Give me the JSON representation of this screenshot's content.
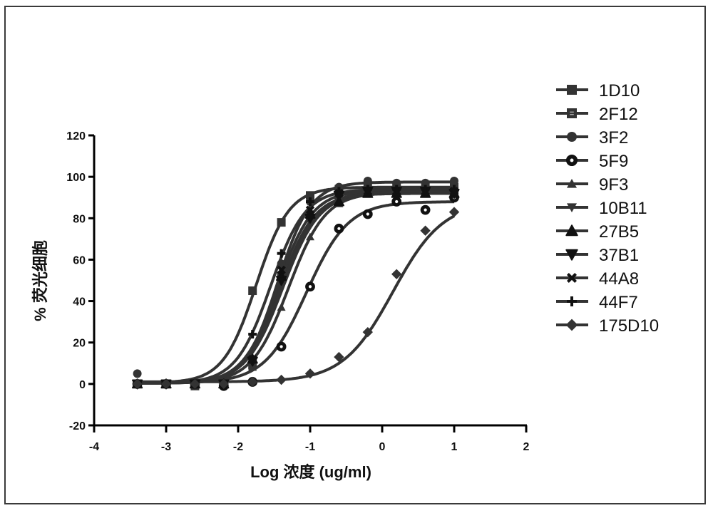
{
  "chart_data": {
    "type": "line",
    "subtype": "dose-response sigmoid fits with scatter markers",
    "title": "",
    "xlabel": "Log 浓度 (ug/ml)",
    "ylabel": "% 荧光细胞",
    "xlim": [
      -4,
      2
    ],
    "ylim": [
      -20,
      120
    ],
    "x_ticks": [
      -4,
      -3,
      -2,
      -1,
      0,
      1,
      2
    ],
    "x_tick_labels": [
      "-4",
      "-3",
      "-2",
      "-1",
      "0",
      "1",
      "2"
    ],
    "y_ticks": [
      -20,
      0,
      20,
      40,
      60,
      80,
      100,
      120
    ],
    "y_tick_labels": [
      "-20",
      "0",
      "20",
      "40",
      "60",
      "80",
      "100",
      "120"
    ],
    "grid": false,
    "legend_position": "right",
    "x": [
      -3.4,
      -3.0,
      -2.6,
      -2.2,
      -1.8,
      -1.4,
      -1.0,
      -0.6,
      -0.2,
      0.2,
      0.6,
      1.0
    ],
    "series": [
      {
        "name": "1D10",
        "marker": "square",
        "values": [
          0,
          0,
          0,
          1,
          45,
          78,
          91,
          94,
          95,
          96,
          95,
          95
        ],
        "fit": {
          "bottom": 0.5,
          "top": 95,
          "logEC50": -1.75,
          "hill": 1.9
        }
      },
      {
        "name": "2F12",
        "marker": "square-open",
        "values": [
          0,
          0,
          -1,
          0,
          9,
          52,
          80,
          90,
          92,
          92,
          92,
          91
        ],
        "fit": {
          "bottom": 0.3,
          "top": 92,
          "logEC50": -1.42,
          "hill": 1.8
        }
      },
      {
        "name": "3F2",
        "marker": "circle",
        "values": [
          5,
          0,
          0,
          0,
          10,
          58,
          88,
          95,
          98,
          97,
          97,
          98
        ],
        "fit": {
          "bottom": 0.5,
          "top": 97.5,
          "logEC50": -1.45,
          "hill": 1.9
        }
      },
      {
        "name": "5F9",
        "marker": "circle-open",
        "values": [
          0,
          0,
          0,
          -1,
          1,
          18,
          47,
          75,
          82,
          88,
          84,
          90
        ],
        "fit": {
          "bottom": 0.5,
          "top": 88,
          "logEC50": -1.05,
          "hill": 1.5
        }
      },
      {
        "name": "9F3",
        "marker": "triangle-up",
        "values": [
          0,
          0,
          0,
          0,
          8,
          37,
          71,
          87,
          92,
          92,
          92,
          92
        ],
        "fit": {
          "bottom": 0.3,
          "top": 92.5,
          "logEC50": -1.3,
          "hill": 1.7
        }
      },
      {
        "name": "10B11",
        "marker": "triangle-down",
        "values": [
          0,
          0,
          0,
          0,
          10,
          48,
          78,
          90,
          92,
          93,
          92,
          92
        ],
        "fit": {
          "bottom": 0.3,
          "top": 92.5,
          "logEC50": -1.38,
          "hill": 1.7
        }
      },
      {
        "name": "27B5",
        "marker": "triangle-up-bold",
        "values": [
          0,
          0,
          0,
          0,
          12,
          52,
          82,
          88,
          92,
          92,
          92,
          92
        ],
        "fit": {
          "bottom": 0.3,
          "top": 92,
          "logEC50": -1.42,
          "hill": 1.8
        }
      },
      {
        "name": "37B1",
        "marker": "triangle-down-bold",
        "values": [
          0,
          0,
          0,
          0,
          11,
          50,
          80,
          91,
          93,
          93,
          93,
          92
        ],
        "fit": {
          "bottom": 0.3,
          "top": 93,
          "logEC50": -1.4,
          "hill": 1.7
        }
      },
      {
        "name": "44A8",
        "marker": "x",
        "values": [
          0,
          0,
          0,
          0,
          12,
          55,
          84,
          92,
          93,
          93,
          93,
          93
        ],
        "fit": {
          "bottom": 0.3,
          "top": 93.5,
          "logEC50": -1.45,
          "hill": 1.8
        }
      },
      {
        "name": "44F7",
        "marker": "plus",
        "values": [
          0,
          0,
          0,
          0,
          24,
          63,
          88,
          93,
          94,
          94,
          94,
          94
        ],
        "fit": {
          "bottom": 0.3,
          "top": 94,
          "logEC50": -1.55,
          "hill": 1.8
        }
      },
      {
        "name": "175D10",
        "marker": "diamond",
        "values": [
          0,
          0,
          0,
          0,
          1,
          2,
          5,
          13,
          25,
          53,
          74,
          83
        ],
        "fit": {
          "bottom": 1,
          "top": 88,
          "logEC50": 0.15,
          "hill": 1.25
        }
      }
    ]
  },
  "legend": {
    "items": [
      {
        "label": "1D10"
      },
      {
        "label": "2F12"
      },
      {
        "label": "3F2"
      },
      {
        "label": "5F9"
      },
      {
        "label": "9F3"
      },
      {
        "label": "10B11"
      },
      {
        "label": "27B5"
      },
      {
        "label": "37B1"
      },
      {
        "label": "44A8"
      },
      {
        "label": "44F7"
      },
      {
        "label": "175D10"
      }
    ]
  },
  "axes": {
    "x_title": "Log 浓度 (ug/ml)",
    "y_title": "% 荧光细胞"
  },
  "style": {
    "series_color": "#333333",
    "axis_color": "#000000"
  }
}
